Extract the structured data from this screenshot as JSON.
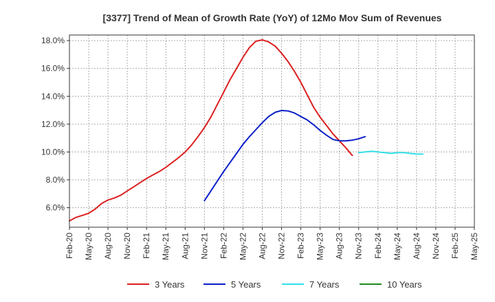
{
  "chart_data": {
    "type": "line",
    "title": "[3377]  Trend of Mean of Growth Rate (YoY) of 12Mo Mov Sum of Revenues",
    "xlabel": "",
    "ylabel": "",
    "x_ticks": [
      "Feb-20",
      "May-20",
      "Aug-20",
      "Nov-20",
      "Feb-21",
      "May-21",
      "Aug-21",
      "Nov-21",
      "Feb-22",
      "May-22",
      "Aug-22",
      "Nov-22",
      "Feb-23",
      "May-23",
      "Aug-23",
      "Nov-23",
      "Feb-24",
      "May-24",
      "Aug-24",
      "Nov-24",
      "Feb-25",
      "May-25"
    ],
    "y_ticks": [
      "6.0%",
      "8.0%",
      "10.0%",
      "12.0%",
      "14.0%",
      "16.0%",
      "18.0%"
    ],
    "y_tick_values": [
      6,
      8,
      10,
      12,
      14,
      16,
      18
    ],
    "ylim": [
      4.6,
      18.4
    ],
    "grid": true,
    "legend_position": "bottom",
    "series": [
      {
        "name": "3 Years",
        "color": "#dd1e1e",
        "x": [
          0,
          1,
          2,
          3,
          4,
          5,
          6,
          7,
          8,
          9,
          10,
          11,
          12,
          13,
          14,
          15,
          16,
          17,
          18,
          19,
          20,
          21,
          22,
          23,
          24,
          25,
          26,
          27,
          28,
          29,
          30,
          31,
          32,
          33,
          34,
          35,
          36,
          37,
          38,
          39,
          40,
          41,
          42,
          43,
          44,
          45,
          46,
          47,
          48,
          49,
          50,
          51,
          52,
          53,
          54,
          55,
          56,
          57,
          58,
          59,
          60,
          61
        ],
        "values": [
          5.05,
          5.3,
          5.45,
          5.6,
          5.9,
          6.3,
          6.55,
          6.7,
          6.9,
          7.2,
          7.5,
          7.8,
          8.1,
          8.35,
          8.6,
          8.9,
          9.25,
          9.6,
          10.0,
          10.5,
          11.1,
          11.75,
          12.5,
          13.4,
          14.3,
          15.2,
          16.0,
          16.8,
          17.5,
          17.95,
          18.05,
          17.9,
          17.6,
          17.1,
          16.5,
          15.8,
          15.0,
          14.1,
          13.2,
          12.5,
          11.9,
          11.3,
          10.8,
          10.3,
          9.75,
          null,
          null,
          null,
          null,
          null,
          null,
          null,
          null,
          null,
          null,
          null,
          null,
          null,
          null,
          null,
          null,
          null
        ]
      },
      {
        "name": "5 Years",
        "color": "#0a1ec8",
        "x": [
          21,
          22,
          23,
          24,
          25,
          26,
          27,
          28,
          29,
          30,
          31,
          32,
          33,
          34,
          35,
          36,
          37,
          38,
          39,
          40,
          41,
          42,
          43,
          44,
          45,
          46,
          47,
          48,
          49,
          50,
          51,
          52,
          53,
          54,
          55,
          56,
          57,
          58,
          59,
          60,
          61
        ],
        "values": [
          6.5,
          7.2,
          7.9,
          8.6,
          9.25,
          9.9,
          10.55,
          11.1,
          11.6,
          12.1,
          12.55,
          12.85,
          12.98,
          12.95,
          12.8,
          12.55,
          12.3,
          11.95,
          11.55,
          11.2,
          10.9,
          10.8,
          10.8,
          10.85,
          10.95,
          11.1,
          null,
          null,
          null,
          null,
          null,
          null,
          null,
          null,
          null,
          null,
          null,
          null,
          null,
          null,
          null
        ]
      },
      {
        "name": "7 Years",
        "color": "#2fe0e8",
        "x": [
          45,
          46,
          47,
          48,
          49,
          50,
          51,
          52,
          53,
          54,
          55,
          56,
          57,
          58,
          59,
          60,
          61
        ],
        "values": [
          9.95,
          10.0,
          10.05,
          10.0,
          9.95,
          9.9,
          9.95,
          9.95,
          9.9,
          9.85,
          9.85,
          null,
          null,
          null,
          null,
          null,
          null
        ]
      },
      {
        "name": "10 Years",
        "color": "#1e8c1e",
        "x": [],
        "values": []
      }
    ]
  }
}
